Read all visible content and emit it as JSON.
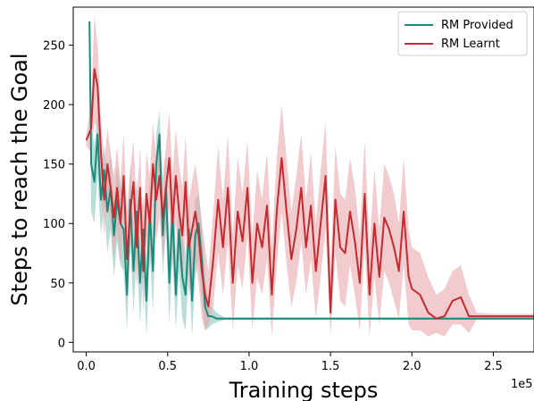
{
  "chart_data": {
    "type": "line",
    "title": "",
    "xlabel": "Training steps",
    "ylabel": "Steps to reach the Goal",
    "x_offset_label": "1e5",
    "xlim": [
      -0.08,
      2.75
    ],
    "ylim": [
      -8,
      282
    ],
    "xticks": [
      0.0,
      0.5,
      1.0,
      1.5,
      2.0,
      2.5
    ],
    "xtick_labels": [
      "0.0",
      "0.5",
      "1.0",
      "1.5",
      "2.0",
      "2.5"
    ],
    "yticks": [
      0,
      50,
      100,
      150,
      200,
      250
    ],
    "ytick_labels": [
      "0",
      "50",
      "100",
      "150",
      "200",
      "250"
    ],
    "grid": false,
    "legend_position": "top-right",
    "series": [
      {
        "name": "RM Provided",
        "color": "#1a8a7a",
        "band_color": "#8cc7bf",
        "x": [
          0.02,
          0.03,
          0.05,
          0.07,
          0.09,
          0.11,
          0.13,
          0.15,
          0.17,
          0.19,
          0.21,
          0.23,
          0.25,
          0.27,
          0.29,
          0.31,
          0.33,
          0.35,
          0.37,
          0.39,
          0.41,
          0.43,
          0.45,
          0.47,
          0.49,
          0.51,
          0.53,
          0.55,
          0.57,
          0.59,
          0.61,
          0.63,
          0.65,
          0.67,
          0.69,
          0.71,
          0.73,
          0.75,
          0.77,
          0.8,
          0.85,
          1.0,
          1.5,
          2.0,
          2.5,
          2.75
        ],
        "y": [
          270,
          150,
          135,
          175,
          120,
          145,
          110,
          130,
          90,
          120,
          100,
          95,
          40,
          120,
          60,
          110,
          50,
          95,
          35,
          110,
          60,
          150,
          175,
          90,
          130,
          50,
          110,
          40,
          95,
          55,
          40,
          95,
          35,
          90,
          100,
          70,
          30,
          22,
          22,
          20,
          20,
          20,
          20,
          20,
          20,
          20
        ],
        "upper": [
          280,
          185,
          165,
          195,
          145,
          165,
          140,
          160,
          120,
          150,
          130,
          125,
          75,
          150,
          95,
          140,
          85,
          125,
          70,
          140,
          95,
          175,
          195,
          120,
          160,
          85,
          140,
          75,
          125,
          90,
          75,
          125,
          70,
          120,
          125,
          100,
          55,
          35,
          30,
          25,
          21,
          21,
          21,
          21,
          21,
          21
        ],
        "lower": [
          240,
          110,
          100,
          140,
          90,
          115,
          75,
          95,
          55,
          85,
          65,
          60,
          10,
          85,
          25,
          75,
          15,
          60,
          5,
          75,
          25,
          115,
          145,
          55,
          95,
          15,
          75,
          10,
          60,
          20,
          10,
          60,
          5,
          55,
          70,
          35,
          10,
          12,
          15,
          17,
          19,
          19,
          19,
          19,
          19,
          19
        ]
      },
      {
        "name": "RM Learnt",
        "color": "#c62a2f",
        "band_color": "#e8a9ab",
        "x": [
          0.0,
          0.03,
          0.05,
          0.07,
          0.09,
          0.11,
          0.13,
          0.15,
          0.17,
          0.19,
          0.21,
          0.23,
          0.25,
          0.27,
          0.29,
          0.31,
          0.33,
          0.35,
          0.37,
          0.39,
          0.41,
          0.43,
          0.45,
          0.47,
          0.49,
          0.51,
          0.53,
          0.55,
          0.57,
          0.59,
          0.61,
          0.63,
          0.65,
          0.67,
          0.69,
          0.71,
          0.73,
          0.75,
          0.78,
          0.81,
          0.84,
          0.87,
          0.9,
          0.93,
          0.96,
          0.99,
          1.02,
          1.05,
          1.08,
          1.11,
          1.14,
          1.17,
          1.2,
          1.23,
          1.26,
          1.29,
          1.32,
          1.35,
          1.38,
          1.41,
          1.44,
          1.47,
          1.5,
          1.53,
          1.56,
          1.59,
          1.62,
          1.65,
          1.68,
          1.71,
          1.74,
          1.77,
          1.8,
          1.83,
          1.86,
          1.89,
          1.92,
          1.95,
          1.98,
          2.0,
          2.05,
          2.1,
          2.15,
          2.2,
          2.25,
          2.3,
          2.35,
          2.4,
          2.5,
          2.75
        ],
        "y": [
          170,
          180,
          230,
          215,
          160,
          120,
          150,
          130,
          105,
          130,
          100,
          140,
          70,
          110,
          135,
          80,
          130,
          60,
          125,
          100,
          150,
          120,
          140,
          105,
          130,
          155,
          100,
          140,
          110,
          90,
          135,
          80,
          95,
          110,
          90,
          60,
          40,
          30,
          70,
          120,
          80,
          130,
          50,
          110,
          85,
          130,
          50,
          100,
          80,
          115,
          40,
          110,
          155,
          110,
          70,
          95,
          130,
          80,
          115,
          60,
          100,
          140,
          25,
          120,
          80,
          75,
          110,
          85,
          50,
          125,
          40,
          100,
          55,
          105,
          95,
          80,
          60,
          110,
          55,
          45,
          40,
          25,
          20,
          22,
          35,
          38,
          22,
          22,
          22,
          22
        ],
        "upper": [
          175,
          200,
          275,
          250,
          190,
          150,
          180,
          160,
          140,
          165,
          135,
          175,
          110,
          145,
          170,
          115,
          165,
          95,
          160,
          140,
          185,
          155,
          175,
          140,
          165,
          195,
          140,
          180,
          150,
          130,
          175,
          120,
          135,
          150,
          130,
          100,
          80,
          60,
          110,
          165,
          120,
          175,
          90,
          155,
          125,
          170,
          90,
          145,
          120,
          160,
          80,
          155,
          200,
          155,
          110,
          140,
          175,
          120,
          160,
          100,
          145,
          185,
          60,
          165,
          125,
          120,
          155,
          130,
          90,
          170,
          80,
          145,
          95,
          150,
          140,
          125,
          100,
          155,
          95,
          80,
          75,
          55,
          40,
          45,
          60,
          65,
          40,
          25,
          24,
          24
        ],
        "lower": [
          165,
          160,
          185,
          180,
          130,
          90,
          120,
          100,
          70,
          95,
          65,
          105,
          30,
          75,
          100,
          45,
          95,
          25,
          90,
          60,
          115,
          85,
          105,
          70,
          95,
          115,
          60,
          100,
          70,
          50,
          95,
          40,
          55,
          70,
          50,
          20,
          10,
          15,
          30,
          75,
          40,
          85,
          10,
          65,
          45,
          90,
          10,
          55,
          40,
          70,
          5,
          65,
          110,
          65,
          30,
          50,
          85,
          40,
          70,
          20,
          55,
          95,
          5,
          75,
          35,
          30,
          65,
          40,
          10,
          80,
          5,
          55,
          15,
          60,
          50,
          35,
          20,
          65,
          15,
          10,
          10,
          5,
          8,
          5,
          15,
          15,
          8,
          20,
          20,
          20
        ]
      }
    ]
  }
}
